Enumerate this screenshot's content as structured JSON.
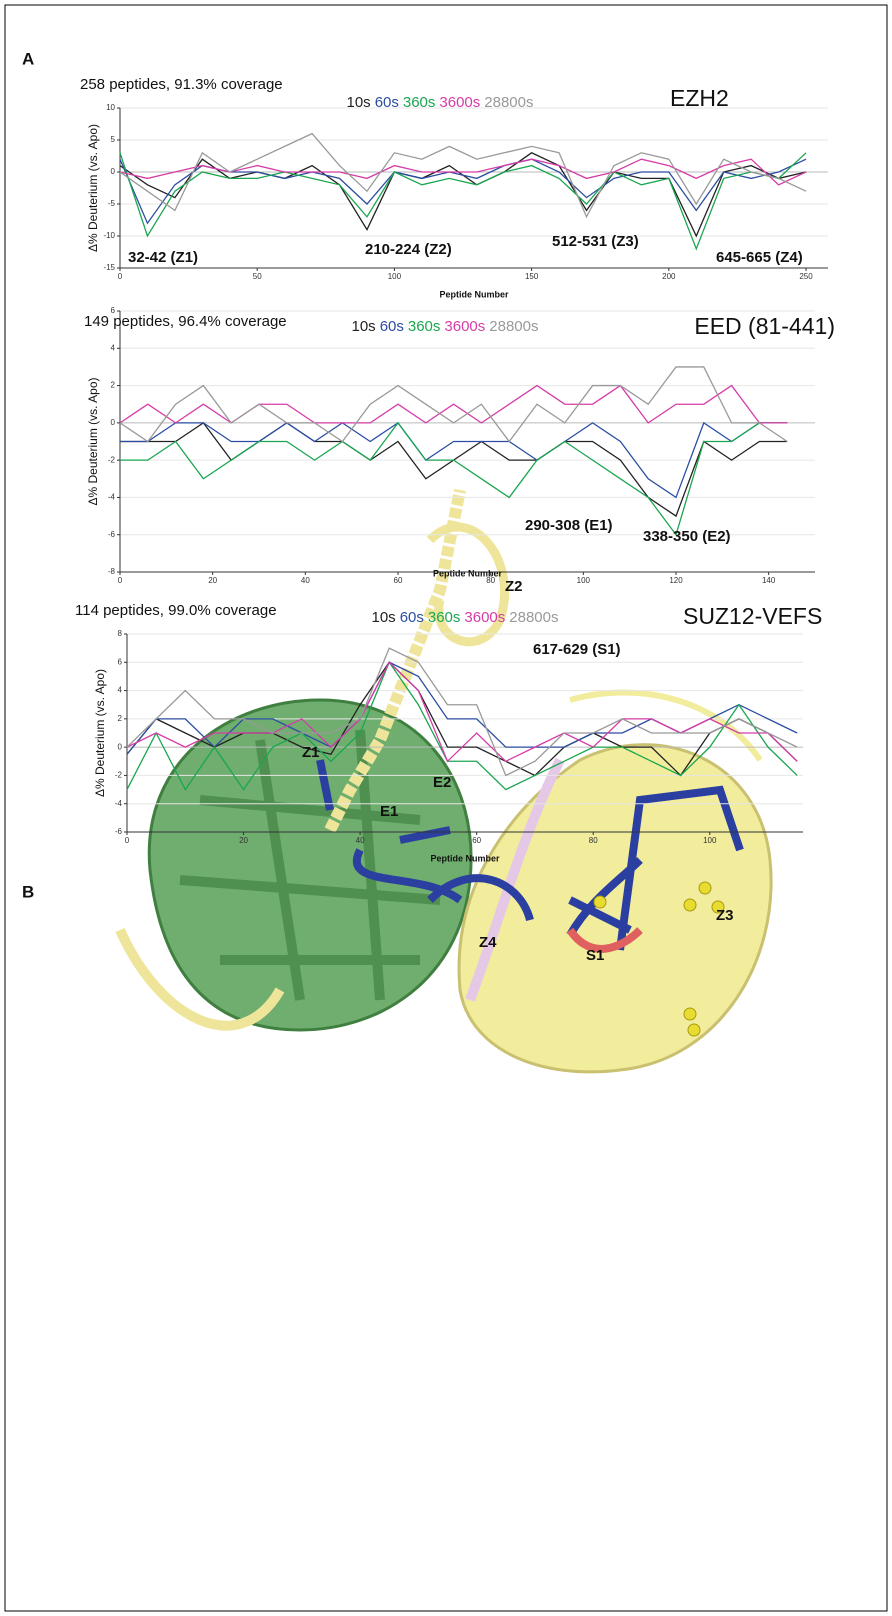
{
  "figure": {
    "panel_a": "A",
    "panel_b": "B",
    "structure_labels": [
      "Z2",
      "Z1",
      "E2",
      "E1",
      "Z4",
      "S1",
      "Z3"
    ]
  },
  "chart_data": [
    {
      "type": "line",
      "title": "258 peptides, 91.3% coverage",
      "protein": "EZH2",
      "x_label": "Peptide Number",
      "y_label": "Δ% Deuterium (vs. Apo)",
      "annotations": [
        "32-42 (Z1)",
        "210-224 (Z2)",
        "512-531 (Z3)",
        "645-665 (Z4)"
      ],
      "x": [
        0,
        10,
        20,
        30,
        40,
        50,
        60,
        70,
        80,
        90,
        100,
        110,
        120,
        130,
        140,
        150,
        160,
        170,
        180,
        190,
        200,
        210,
        220,
        230,
        240,
        250
      ],
      "series": [
        {
          "name": "10s",
          "color": "#222222",
          "values": [
            1,
            -2,
            -4,
            2,
            -1,
            0,
            -1,
            1,
            -2,
            -9,
            0,
            -1,
            1,
            -2,
            0,
            3,
            1,
            -6,
            0,
            -1,
            -1,
            -10,
            0,
            1,
            -1,
            0
          ]
        },
        {
          "name": "60s",
          "color": "#2b4ea2",
          "values": [
            2,
            -8,
            -2,
            1,
            0,
            0,
            -1,
            0,
            -1,
            -5,
            0,
            -1,
            0,
            -1,
            1,
            2,
            0,
            -4,
            -1,
            0,
            0,
            -6,
            0,
            -1,
            0,
            2
          ]
        },
        {
          "name": "360s",
          "color": "#1aa650",
          "values": [
            3,
            -10,
            -3,
            0,
            -1,
            -1,
            0,
            -1,
            -2,
            -7,
            0,
            -2,
            -1,
            -2,
            0,
            1,
            -1,
            -5,
            0,
            -2,
            -1,
            -12,
            -1,
            0,
            -1,
            3
          ]
        },
        {
          "name": "3600s",
          "color": "#d63ca8",
          "values": [
            0,
            -1,
            0,
            1,
            0,
            1,
            0,
            0,
            0,
            -1,
            1,
            0,
            0,
            0,
            1,
            2,
            1,
            -1,
            0,
            2,
            1,
            -1,
            1,
            2,
            -2,
            0
          ]
        },
        {
          "name": "28800s",
          "color": "#999999",
          "values": [
            0,
            -3,
            -6,
            3,
            0,
            2,
            4,
            6,
            1,
            -3,
            3,
            2,
            4,
            2,
            3,
            4,
            3,
            -7,
            1,
            3,
            2,
            -5,
            2,
            0,
            -1,
            -3
          ]
        }
      ],
      "xlim": [
        0,
        258
      ],
      "xticks": [
        0,
        50,
        100,
        150,
        200,
        250
      ],
      "ylim": [
        -15,
        10
      ],
      "yticks": [
        -15,
        -10,
        -5,
        0,
        5,
        10
      ],
      "grid": true
    },
    {
      "type": "line",
      "title": "149 peptides, 96.4% coverage",
      "protein": "EED (81-441)",
      "x_label": "Peptide Number",
      "y_label": "Δ% Deuterium (vs. Apo)",
      "annotations": [
        "290-308 (E1)",
        "338-350 (E2)"
      ],
      "x": [
        0,
        6,
        12,
        18,
        24,
        30,
        36,
        42,
        48,
        54,
        60,
        66,
        72,
        78,
        84,
        90,
        96,
        102,
        108,
        114,
        120,
        126,
        132,
        138,
        144
      ],
      "series": [
        {
          "name": "10s",
          "color": "#222222",
          "values": [
            -1,
            -1,
            -1,
            0,
            -2,
            -1,
            0,
            -1,
            -1,
            -2,
            -1,
            -3,
            -2,
            -1,
            -2,
            -2,
            -1,
            -1,
            -2,
            -4,
            -5,
            -1,
            -2,
            -1,
            -1
          ]
        },
        {
          "name": "60s",
          "color": "#2b4ea2",
          "values": [
            -1,
            -1,
            0,
            0,
            -1,
            -1,
            0,
            -1,
            0,
            -1,
            0,
            -2,
            -1,
            -1,
            -1,
            -2,
            -1,
            0,
            -1,
            -3,
            -4,
            0,
            -1,
            0,
            0
          ]
        },
        {
          "name": "360s",
          "color": "#1aa650",
          "values": [
            -2,
            -2,
            -1,
            -3,
            -2,
            -1,
            -1,
            -2,
            -1,
            -2,
            0,
            -2,
            -2,
            -3,
            -4,
            -2,
            -1,
            -2,
            -3,
            -4,
            -6,
            -1,
            -1,
            0,
            0
          ]
        },
        {
          "name": "3600s",
          "color": "#d63ca8",
          "values": [
            0,
            1,
            0,
            1,
            0,
            1,
            1,
            0,
            0,
            0,
            1,
            0,
            1,
            0,
            1,
            2,
            1,
            1,
            2,
            0,
            1,
            1,
            2,
            0,
            0
          ]
        },
        {
          "name": "28800s",
          "color": "#999999",
          "values": [
            0,
            -1,
            1,
            2,
            0,
            1,
            0,
            0,
            -1,
            1,
            2,
            1,
            0,
            1,
            -1,
            1,
            0,
            2,
            2,
            1,
            3,
            3,
            0,
            0,
            -1
          ]
        }
      ],
      "xlim": [
        0,
        150
      ],
      "xticks": [
        0,
        20,
        40,
        60,
        80,
        100,
        120,
        140
      ],
      "ylim": [
        -8,
        6
      ],
      "yticks": [
        -8,
        -6,
        -4,
        -2,
        0,
        2,
        4,
        6
      ],
      "grid": true
    },
    {
      "type": "line",
      "title": "114 peptides, 99.0% coverage",
      "protein": "SUZ12-VEFS",
      "x_label": "Peptide Number",
      "y_label": "Δ% Deuterium (vs. Apo)",
      "annotations": [
        "617-629 (S1)"
      ],
      "x": [
        0,
        5,
        10,
        15,
        20,
        25,
        30,
        35,
        40,
        45,
        50,
        55,
        60,
        65,
        70,
        75,
        80,
        85,
        90,
        95,
        100,
        105,
        110,
        115
      ],
      "series": [
        {
          "name": "10s",
          "color": "#222222",
          "values": [
            -0.5,
            2,
            1,
            0,
            1,
            1,
            0,
            -0.5,
            3,
            6,
            4,
            0,
            0,
            -1,
            -2,
            0,
            1,
            0,
            0,
            -2,
            1,
            2,
            1,
            -1
          ]
        },
        {
          "name": "60s",
          "color": "#2b4ea2",
          "values": [
            -0.5,
            2,
            2,
            0,
            2,
            2,
            1,
            0,
            2,
            6,
            5,
            2,
            2,
            0,
            0,
            0,
            1,
            1,
            2,
            1,
            2,
            3,
            2,
            1
          ]
        },
        {
          "name": "360s",
          "color": "#1aa650",
          "values": [
            -3,
            1,
            -3,
            0,
            -3,
            0,
            1,
            -1,
            1,
            6,
            3,
            -1,
            -1,
            -3,
            -2,
            -1,
            0,
            0,
            -1,
            -2,
            0,
            3,
            0,
            -2
          ]
        },
        {
          "name": "3600s",
          "color": "#d63ca8",
          "values": [
            0,
            1,
            0,
            1,
            1,
            1,
            2,
            0,
            2,
            6,
            4,
            -1,
            1,
            -1,
            0,
            1,
            0,
            2,
            2,
            1,
            2,
            1,
            1,
            -1
          ]
        },
        {
          "name": "28800s",
          "color": "#999999",
          "values": [
            0,
            2,
            4,
            2,
            2,
            1,
            1,
            1,
            2,
            7,
            6,
            3,
            3,
            -2,
            -1,
            1,
            1,
            2,
            1,
            1,
            1,
            2,
            1,
            0
          ]
        }
      ],
      "xlim": [
        0,
        116
      ],
      "xticks": [
        0,
        20,
        40,
        60,
        80,
        100
      ],
      "ylim": [
        -6,
        8
      ],
      "yticks": [
        -6,
        -4,
        -2,
        0,
        2,
        4,
        6,
        8
      ],
      "grid": true
    }
  ]
}
